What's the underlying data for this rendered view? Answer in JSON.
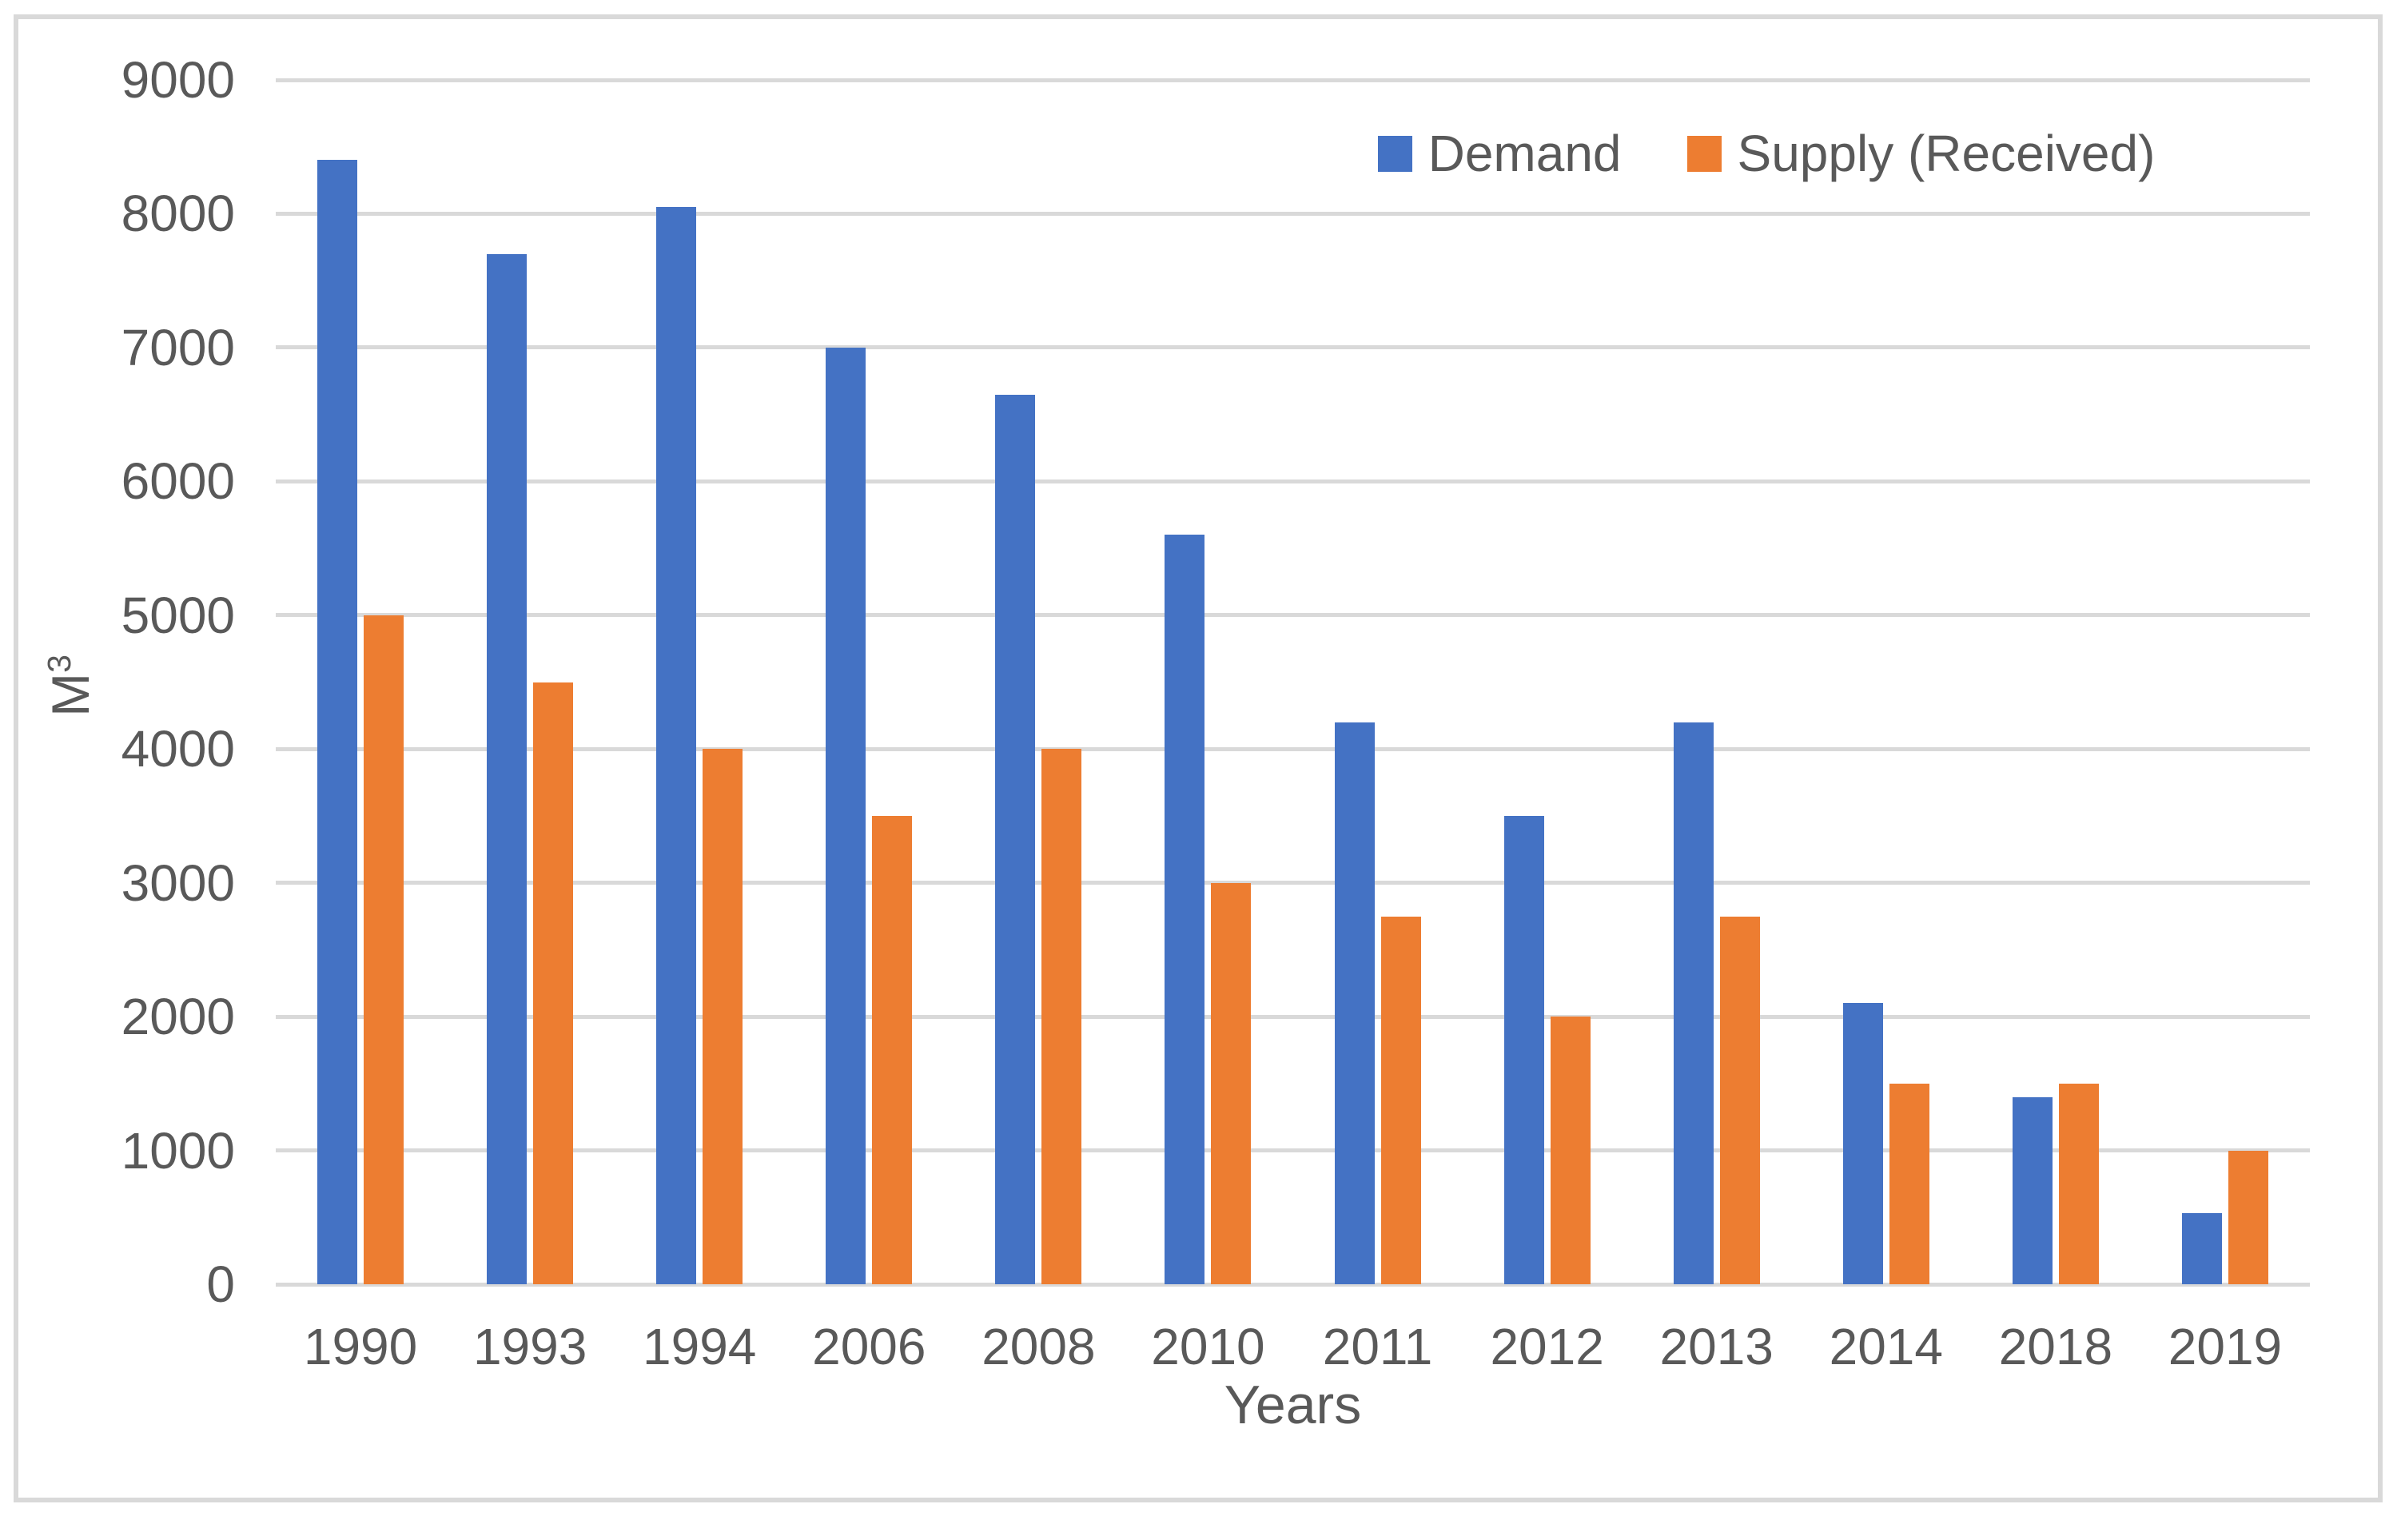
{
  "chart_data": {
    "type": "bar",
    "title": "",
    "categories": [
      "1990",
      "1993",
      "1994",
      "2006",
      "2008",
      "2010",
      "2011",
      "2012",
      "2013",
      "2014",
      "2018",
      "2019"
    ],
    "series": [
      {
        "name": "Demand",
        "color": "#4472C4",
        "values": [
          8400,
          7700,
          8050,
          7000,
          6650,
          5600,
          4200,
          3500,
          4200,
          2100,
          1400,
          530
        ]
      },
      {
        "name": "Supply (Received)",
        "color": "#ED7D31",
        "values": [
          5000,
          4500,
          4000,
          3500,
          4000,
          3000,
          2750,
          2000,
          2750,
          1500,
          1500,
          1000
        ]
      }
    ],
    "xlabel": "Years",
    "ylabel_base": "M",
    "ylabel_sup": "3",
    "ylim": [
      0,
      9000
    ],
    "ytick_interval": 1000,
    "yticks": [
      "0",
      "1000",
      "2000",
      "3000",
      "4000",
      "5000",
      "6000",
      "7000",
      "8000",
      "9000"
    ],
    "grid": "horizontal",
    "legend_position": "top-right-inside"
  },
  "style": {
    "gridline_color": "#d9d9d9",
    "border_color": "#d9d9d9",
    "text_color": "#595959",
    "background_color": "#ffffff"
  }
}
